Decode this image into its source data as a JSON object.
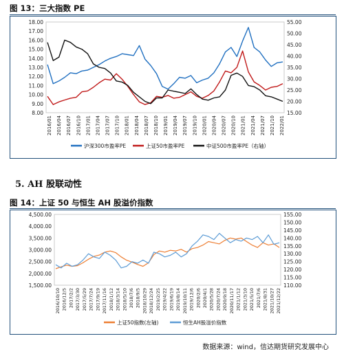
{
  "figure13": {
    "title": "图 13：三大指数 PE",
    "chart_data": {
      "type": "line",
      "ylim_left": [
        8.0,
        18.0
      ],
      "yticks_left": [
        "8.00",
        "9.00",
        "10.00",
        "11.00",
        "12.00",
        "13.00",
        "14.00",
        "15.00",
        "16.00",
        "17.00",
        "18.00"
      ],
      "ylim_right": [
        15,
        55
      ],
      "yticks_right": [
        "15.00",
        "20.00",
        "25.00",
        "30.00",
        "35.00",
        "40.00",
        "45.00",
        "50.00",
        "55.00"
      ],
      "x_ticks": [
        "2016/01",
        "2016/04",
        "2016/07",
        "2016/10",
        "2017/01",
        "2017/04",
        "2017/07",
        "2017/10",
        "2018/01",
        "2018/04",
        "2018/07",
        "2018/10",
        "2019/01",
        "2019/04",
        "2019/07",
        "2019/10",
        "2020/01",
        "2020/04",
        "2020/07",
        "2020/10",
        "2021/01",
        "2021/04",
        "2021/07",
        "2021/10",
        "2022/01"
      ],
      "legend": "bottom",
      "series": [
        {
          "name": "沪深300市盈率PE",
          "axis": "left",
          "color": "#1f6fc0",
          "values": [
            13.3,
            11.2,
            11.5,
            11.9,
            12.4,
            12.3,
            12.6,
            12.7,
            13.0,
            13.3,
            13.7,
            14.0,
            14.2,
            14.5,
            14.4,
            14.3,
            15.4,
            13.9,
            13.2,
            12.3,
            10.9,
            10.6,
            11.2,
            11.9,
            11.8,
            12.1,
            11.3,
            11.6,
            11.8,
            12.4,
            13.4,
            14.7,
            15.2,
            14.2,
            15.9,
            17.4,
            15.2,
            14.7,
            13.8,
            13.1,
            13.5,
            13.6
          ]
        },
        {
          "name": "上证50市盈率PE",
          "axis": "left",
          "color": "#c01818",
          "values": [
            9.8,
            8.9,
            9.2,
            9.4,
            9.6,
            9.7,
            10.3,
            10.4,
            10.8,
            11.3,
            11.7,
            11.6,
            12.3,
            11.7,
            10.9,
            10.0,
            9.2,
            8.9,
            9.1,
            9.8,
            9.7,
            9.9,
            9.6,
            9.7,
            10.0,
            10.3,
            9.8,
            9.6,
            9.9,
            10.4,
            11.4,
            12.6,
            12.4,
            13.0,
            14.8,
            12.5,
            11.4,
            11.0,
            10.5,
            10.8,
            10.9,
            11.2
          ]
        },
        {
          "name": "中证500市盈率PE（右轴）",
          "axis": "right",
          "color": "#111111",
          "values": [
            46.0,
            38.0,
            39.5,
            47.0,
            46.0,
            44.0,
            43.0,
            41.0,
            36.5,
            35.0,
            34.5,
            32.5,
            29.0,
            28.5,
            27.0,
            24.0,
            22.0,
            20.0,
            19.0,
            21.5,
            21.5,
            25.0,
            24.5,
            24.0,
            23.5,
            25.5,
            23.0,
            21.0,
            20.5,
            21.5,
            22.0,
            25.0,
            31.5,
            32.5,
            31.0,
            27.0,
            26.5,
            25.0,
            22.5,
            22.0,
            21.0,
            20.0
          ]
        }
      ]
    }
  },
  "section": {
    "heading": "5. AH 股联动性"
  },
  "figure14": {
    "title": "图 14：上证 50 与恒生 AH 股溢价指数",
    "chart_data": {
      "type": "line",
      "ylim_left": [
        1500,
        4500
      ],
      "yticks_left": [
        "1,500.00",
        "2,000.00",
        "2,500.00",
        "3,000.00",
        "3,500.00",
        "4,000.00",
        "4,500.00"
      ],
      "ylim_right": [
        110,
        155
      ],
      "yticks_right": [
        "110.00",
        "115.00",
        "120.00",
        "125.00",
        "130.00",
        "135.00",
        "140.00",
        "145.00",
        "150.00",
        "155.00"
      ],
      "x_ticks": [
        "2016/10/10",
        "2016/12/5",
        "2017/2/2",
        "2017/3/30",
        "2017/5/29",
        "2017/7/24",
        "2017/9/19",
        "2017/11/16",
        "2018/1/12",
        "2018/3/14",
        "2018/5/10",
        "2018/7/6",
        "2018/9/5",
        "2018/10/29",
        "2018/12/24",
        "2019/2/25",
        "2019/4/22",
        "2019/6/19",
        "2019/8/14",
        "2019/10/11",
        "2019/12/6",
        "2020/2/6",
        "2020/4/1",
        "2020/5/28",
        "2020/7/24",
        "2020/9/18",
        "2020/11/17",
        "2021/1/12",
        "2021/3/10",
        "2021/5/10",
        "2021/7/6",
        "2021/8/31",
        "2021/10/27",
        "2021/12/22"
      ],
      "legend": "bottom",
      "series": [
        {
          "name": "上证50指数(左轴)",
          "axis": "left",
          "color": "#ed7d31",
          "values": [
            2200,
            2280,
            2350,
            2300,
            2330,
            2450,
            2600,
            2720,
            2780,
            2900,
            2950,
            2880,
            2700,
            2560,
            2480,
            2380,
            2300,
            2450,
            2800,
            2950,
            2900,
            2980,
            2950,
            3020,
            2900,
            3050,
            3100,
            3200,
            3350,
            3300,
            3250,
            3400,
            3500,
            3450,
            3500,
            3350,
            3200,
            3100,
            3300,
            3200,
            3250,
            3100
          ]
        },
        {
          "name": "恒生AH股溢价指数",
          "axis": "right",
          "color": "#5b9bd5",
          "values": [
            123,
            121,
            124,
            122,
            123,
            126,
            130,
            128,
            127,
            131,
            129,
            126,
            121,
            122,
            125,
            124,
            126,
            124,
            131,
            130,
            128,
            129,
            131,
            128,
            130,
            135,
            138,
            142,
            141,
            139,
            143,
            140,
            137,
            139,
            138,
            140,
            139,
            141,
            137,
            142,
            136,
            137
          ]
        }
      ]
    }
  },
  "source": "数据来源：wind，信达期货研究发展中心"
}
